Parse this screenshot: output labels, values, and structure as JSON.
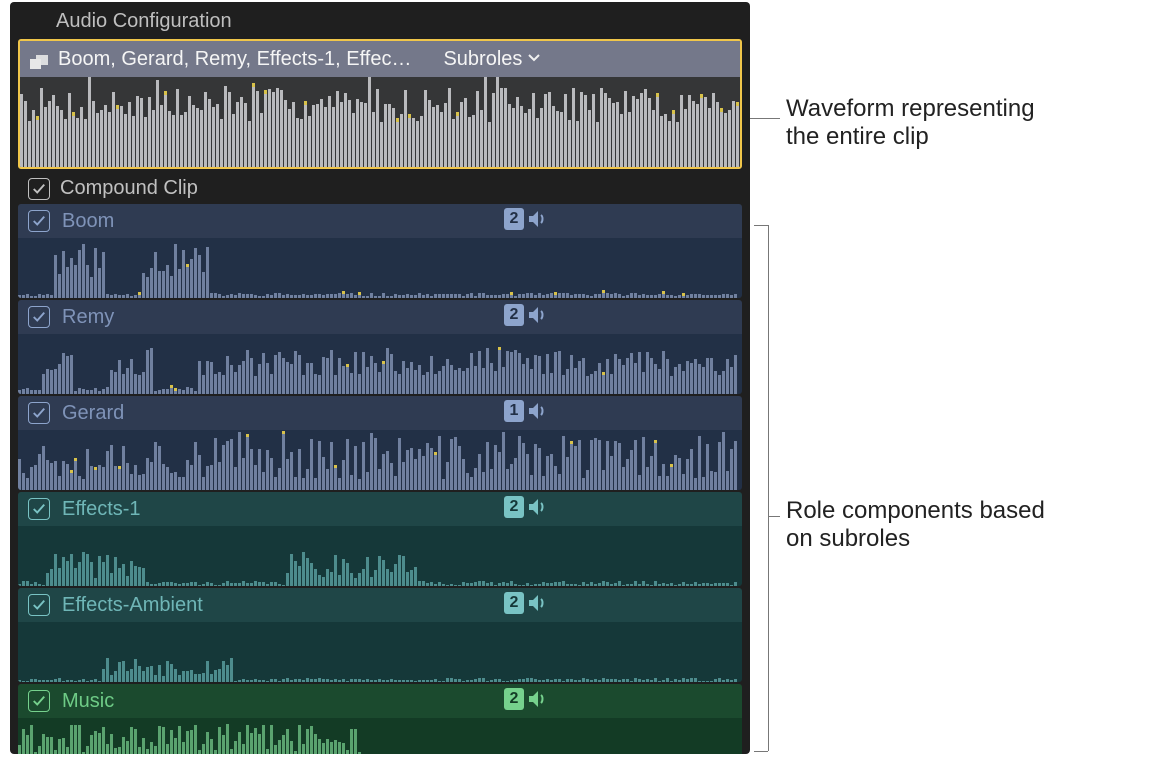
{
  "panel": {
    "title": "Audio Configuration",
    "mainClip": {
      "title": "Boom, Gerard, Remy, Effects-1, Effec…",
      "dropdownLabel": "Subroles",
      "waveform": {
        "bars": 180,
        "baseHeight": 55,
        "variance": 35,
        "color": "#b9babd",
        "peakColor": "#d8c24a"
      }
    },
    "compoundLabel": "Compound Clip"
  },
  "roleColors": {
    "dialogue": {
      "bgTop": "#2f3b52",
      "bgBottom": "#223046",
      "wave": "#70809f",
      "text": "#7f93b8",
      "accent": "#8da4cc"
    },
    "effects": {
      "bgTop": "#1f4647",
      "bgBottom": "#153839",
      "wave": "#4d8c8d",
      "text": "#6fb6b7",
      "accent": "#79c3c4"
    },
    "music": {
      "bgTop": "#1b4a2e",
      "bgBottom": "#133b25",
      "wave": "#5aa36f",
      "text": "#6ecb86",
      "accent": "#76d18d"
    }
  },
  "tracks": [
    {
      "label": "Boom",
      "role": "dialogue",
      "channels": "2",
      "wave": {
        "pattern": "sparse",
        "seed": 11
      }
    },
    {
      "label": "Remy",
      "role": "dialogue",
      "channels": "2",
      "wave": {
        "pattern": "blocks",
        "seed": 23
      }
    },
    {
      "label": "Gerard",
      "role": "dialogue",
      "channels": "1",
      "wave": {
        "pattern": "dense",
        "seed": 37
      }
    },
    {
      "label": "Effects-1",
      "role": "effects",
      "channels": "2",
      "wave": {
        "pattern": "lumps",
        "seed": 41
      }
    },
    {
      "label": "Effects-Ambient",
      "role": "effects",
      "channels": "2",
      "wave": {
        "pattern": "tiny",
        "seed": 53
      }
    },
    {
      "label": "Music",
      "role": "music",
      "channels": "2",
      "wave": {
        "pattern": "half",
        "seed": 61
      }
    }
  ],
  "callouts": {
    "top": {
      "line1": "Waveform representing",
      "line2": "the entire clip"
    },
    "bottom": {
      "line1": "Role components based",
      "line2": "on subroles"
    }
  }
}
